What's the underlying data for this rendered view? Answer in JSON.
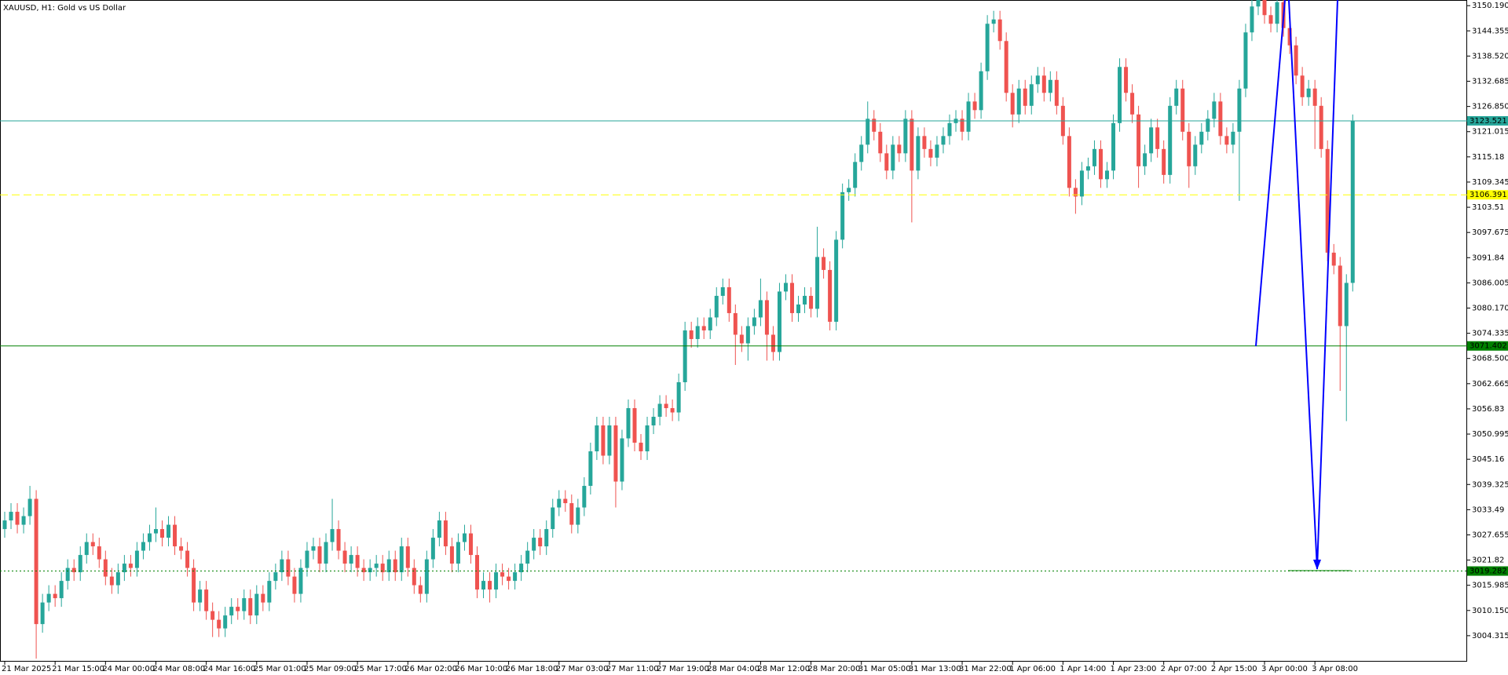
{
  "chart_data": {
    "type": "candlestick",
    "title": "XAUUSD, H1:  Gold vs US Dollar",
    "up_color": "#26a69a",
    "down_color": "#ef5350",
    "categories": [
      "21 Mar 2025",
      null,
      null,
      null,
      null,
      null,
      null,
      null,
      "21 Mar 15:00",
      null,
      null,
      null,
      null,
      null,
      null,
      null,
      "24 Mar 00:00",
      null,
      null,
      null,
      null,
      null,
      null,
      null,
      "24 Mar 08:00",
      null,
      null,
      null,
      null,
      null,
      null,
      null,
      "24 Mar 16:00",
      null,
      null,
      null,
      null,
      null,
      null,
      null,
      "25 Mar 01:00",
      null,
      null,
      null,
      null,
      null,
      null,
      null,
      "25 Mar 09:00",
      null,
      null,
      null,
      null,
      null,
      null,
      null,
      "25 Mar 17:00",
      null,
      null,
      null,
      null,
      null,
      null,
      null,
      "26 Mar 02:00",
      null,
      null,
      null,
      null,
      null,
      null,
      null,
      "26 Mar 10:00",
      null,
      null,
      null,
      null,
      null,
      null,
      null,
      "26 Mar 18:00",
      null,
      null,
      null,
      null,
      null,
      null,
      null,
      "27 Mar 03:00",
      null,
      null,
      null,
      null,
      null,
      null,
      null,
      "27 Mar 11:00",
      null,
      null,
      null,
      null,
      null,
      null,
      null,
      "27 Mar 19:00",
      null,
      null,
      null,
      null,
      null,
      null,
      null,
      "28 Mar 04:00",
      null,
      null,
      null,
      null,
      null,
      null,
      null,
      "28 Mar 12:00",
      null,
      null,
      null,
      null,
      null,
      null,
      null,
      "28 Mar 20:00",
      null,
      null,
      null,
      null,
      null,
      null,
      null,
      "31 Mar 05:00",
      null,
      null,
      null,
      null,
      null,
      null,
      null,
      "31 Mar 13:00",
      null,
      null,
      null,
      null,
      null,
      null,
      null,
      "31 Mar 22:00",
      null,
      null,
      null,
      null,
      null,
      null,
      null,
      "1 Apr 06:00",
      null,
      null,
      null,
      null,
      null,
      null,
      null,
      "1 Apr 14:00",
      null,
      null,
      null,
      null,
      null,
      null,
      null,
      "1 Apr 23:00",
      null,
      null,
      null,
      null,
      null,
      null,
      null,
      "2 Apr 07:00",
      null,
      null,
      null,
      null,
      null,
      null,
      null,
      "2 Apr 15:00",
      null,
      null,
      null,
      null,
      null,
      null,
      null,
      "3 Apr 00:00",
      null,
      null,
      null,
      null,
      null,
      null,
      null,
      "3 Apr 08:00",
      null,
      null,
      null,
      null,
      null,
      null
    ],
    "open": [
      3029,
      3031,
      3033,
      3030,
      3032,
      3036,
      3007,
      3012,
      3014,
      3013,
      3017,
      3020,
      3019,
      3023,
      3026,
      3025,
      3022,
      3018,
      3016,
      3019,
      3021,
      3020,
      3024,
      3026,
      3028,
      3029,
      3027,
      3030,
      3025,
      3024,
      3020,
      3012,
      3015,
      3010,
      3008,
      3006,
      3009,
      3011,
      3010,
      3013,
      3009,
      3014,
      3012,
      3017,
      3019,
      3022,
      3018,
      3014,
      3020,
      3024,
      3025,
      3021,
      3026,
      3029,
      3024,
      3021,
      3023,
      3020,
      3019,
      3020,
      3021,
      3019,
      3022,
      3019,
      3025,
      3020,
      3016,
      3014,
      3022,
      3027,
      3031,
      3025,
      3021,
      3026,
      3028,
      3023,
      3015,
      3017,
      3015,
      3019,
      3018,
      3017,
      3019,
      3021,
      3024,
      3027,
      3025,
      3029,
      3034,
      3036,
      3035,
      3030,
      3034,
      3039,
      3047,
      3053,
      3046,
      3053,
      3040,
      3050,
      3057,
      3049,
      3047,
      3053,
      3055,
      3058,
      3057,
      3056,
      3063,
      3075,
      3073,
      3076,
      3075,
      3078,
      3083,
      3085,
      3079,
      3074,
      3072,
      3076,
      3078,
      3082,
      3074,
      3070,
      3084,
      3086,
      3079,
      3081,
      3083,
      3080,
      3092,
      3089,
      3077,
      3096,
      3107,
      3108,
      3114,
      3118,
      3124,
      3121,
      3116,
      3112,
      3118,
      3116,
      3124,
      3112,
      3120,
      3117,
      3115,
      3118,
      3120,
      3123,
      3124,
      3121,
      3128,
      3126,
      3135,
      3146,
      3147,
      3142,
      3130,
      3125,
      3131,
      3127,
      3132,
      3134,
      3130,
      3133,
      3127,
      3120,
      3108,
      3106,
      3112,
      3113,
      3117,
      3110,
      3112,
      3123,
      3136,
      3130,
      3125,
      3113,
      3116,
      3122,
      3117,
      3111,
      3127,
      3131,
      3121,
      3113,
      3118,
      3121,
      3124,
      3128,
      3120,
      3118,
      3121,
      3131,
      3144,
      3150,
      3153,
      3148,
      3146,
      3151,
      3145,
      3141,
      3134,
      3129,
      3131,
      3127,
      3117,
      3093,
      3090,
      3076,
      3086
    ],
    "high": [
      3033,
      3035,
      3035,
      3034,
      3039,
      3038,
      3014,
      3016,
      3016,
      3019,
      3022,
      3022,
      3025,
      3028,
      3028,
      3027,
      3024,
      3020,
      3021,
      3023,
      3023,
      3026,
      3028,
      3030,
      3034,
      3031,
      3032,
      3032,
      3027,
      3026,
      3022,
      3017,
      3017,
      3012,
      3010,
      3011,
      3013,
      3013,
      3015,
      3015,
      3016,
      3016,
      3019,
      3021,
      3024,
      3024,
      3020,
      3022,
      3026,
      3027,
      3027,
      3028,
      3036,
      3031,
      3026,
      3025,
      3025,
      3022,
      3022,
      3023,
      3023,
      3024,
      3024,
      3027,
      3027,
      3022,
      3018,
      3024,
      3029,
      3033,
      3033,
      3027,
      3028,
      3030,
      3030,
      3025,
      3019,
      3019,
      3021,
      3021,
      3020,
      3021,
      3023,
      3026,
      3029,
      3029,
      3031,
      3036,
      3038,
      3038,
      3037,
      3036,
      3041,
      3049,
      3055,
      3055,
      3055,
      3055,
      3052,
      3059,
      3059,
      3051,
      3055,
      3057,
      3060,
      3060,
      3059,
      3065,
      3077,
      3077,
      3078,
      3078,
      3080,
      3085,
      3087,
      3087,
      3081,
      3076,
      3078,
      3080,
      3087,
      3084,
      3076,
      3086,
      3088,
      3088,
      3083,
      3085,
      3085,
      3099,
      3094,
      3091,
      3098,
      3109,
      3110,
      3116,
      3120,
      3128,
      3126,
      3123,
      3118,
      3120,
      3120,
      3126,
      3126,
      3122,
      3122,
      3119,
      3120,
      3122,
      3125,
      3126,
      3126,
      3130,
      3130,
      3137,
      3148,
      3149,
      3149,
      3144,
      3132,
      3133,
      3133,
      3134,
      3136,
      3136,
      3135,
      3135,
      3129,
      3122,
      3110,
      3114,
      3115,
      3119,
      3119,
      3114,
      3125,
      3138,
      3138,
      3132,
      3127,
      3118,
      3124,
      3124,
      3119,
      3129,
      3133,
      3133,
      3123,
      3120,
      3123,
      3126,
      3130,
      3130,
      3122,
      3123,
      3133,
      3146,
      3152,
      3156,
      3155,
      3150,
      3153,
      3153,
      3147,
      3143,
      3136,
      3133,
      3133,
      3129,
      3119,
      3095,
      3092,
      3088,
      3125
    ],
    "low": [
      3027,
      3029,
      3028,
      3028,
      3030,
      2999,
      3005,
      3010,
      3011,
      3011,
      3015,
      3017,
      3017,
      3021,
      3023,
      3020,
      3016,
      3014,
      3014,
      3017,
      3018,
      3018,
      3022,
      3024,
      3026,
      3025,
      3025,
      3023,
      3022,
      3018,
      3010,
      3010,
      3008,
      3004,
      3004,
      3004,
      3007,
      3008,
      3008,
      3007,
      3007,
      3010,
      3010,
      3015,
      3017,
      3016,
      3012,
      3012,
      3018,
      3022,
      3019,
      3019,
      3024,
      3022,
      3019,
      3019,
      3018,
      3017,
      3017,
      3018,
      3017,
      3017,
      3017,
      3017,
      3018,
      3014,
      3012,
      3012,
      3020,
      3025,
      3023,
      3019,
      3019,
      3024,
      3021,
      3013,
      3013,
      3012,
      3013,
      3016,
      3015,
      3015,
      3017,
      3019,
      3022,
      3023,
      3023,
      3027,
      3032,
      3033,
      3028,
      3028,
      3032,
      3037,
      3045,
      3044,
      3044,
      3034,
      3038,
      3048,
      3047,
      3045,
      3045,
      3051,
      3053,
      3055,
      3054,
      3054,
      3061,
      3071,
      3071,
      3073,
      3073,
      3076,
      3081,
      3077,
      3067,
      3070,
      3068,
      3074,
      3076,
      3068,
      3068,
      3068,
      3082,
      3077,
      3077,
      3079,
      3078,
      3078,
      3087,
      3075,
      3075,
      3094,
      3105,
      3106,
      3112,
      3116,
      3119,
      3114,
      3110,
      3110,
      3114,
      3114,
      3100,
      3110,
      3115,
      3113,
      3113,
      3116,
      3118,
      3121,
      3119,
      3119,
      3124,
      3124,
      3133,
      3144,
      3140,
      3128,
      3122,
      3123,
      3125,
      3125,
      3130,
      3128,
      3128,
      3125,
      3118,
      3106,
      3102,
      3104,
      3110,
      3111,
      3108,
      3108,
      3110,
      3121,
      3128,
      3123,
      3108,
      3111,
      3114,
      3115,
      3109,
      3109,
      3125,
      3119,
      3108,
      3111,
      3116,
      3119,
      3122,
      3118,
      3116,
      3116,
      3105,
      3129,
      3142,
      3148,
      3146,
      3144,
      3144,
      3143,
      3139,
      3132,
      3127,
      3127,
      3117,
      3115,
      3091,
      3088,
      3061,
      3054,
      3084
    ],
    "close": [
      3031,
      3033,
      3030,
      3032,
      3036,
      3007,
      3012,
      3014,
      3013,
      3017,
      3020,
      3019,
      3023,
      3026,
      3025,
      3022,
      3018,
      3016,
      3019,
      3021,
      3020,
      3024,
      3026,
      3028,
      3029,
      3027,
      3030,
      3025,
      3024,
      3020,
      3012,
      3015,
      3010,
      3008,
      3006,
      3009,
      3011,
      3010,
      3013,
      3009,
      3014,
      3012,
      3017,
      3019,
      3022,
      3018,
      3014,
      3020,
      3024,
      3025,
      3021,
      3026,
      3029,
      3024,
      3021,
      3023,
      3020,
      3019,
      3020,
      3021,
      3019,
      3022,
      3019,
      3025,
      3020,
      3016,
      3014,
      3022,
      3027,
      3031,
      3025,
      3021,
      3026,
      3028,
      3023,
      3015,
      3017,
      3015,
      3019,
      3018,
      3017,
      3019,
      3021,
      3024,
      3027,
      3025,
      3029,
      3034,
      3036,
      3035,
      3030,
      3034,
      3039,
      3047,
      3053,
      3046,
      3053,
      3040,
      3050,
      3057,
      3049,
      3047,
      3053,
      3055,
      3058,
      3057,
      3056,
      3063,
      3075,
      3073,
      3076,
      3075,
      3078,
      3083,
      3085,
      3079,
      3074,
      3072,
      3076,
      3078,
      3082,
      3074,
      3070,
      3084,
      3086,
      3079,
      3081,
      3083,
      3080,
      3092,
      3089,
      3077,
      3096,
      3107,
      3108,
      3114,
      3118,
      3124,
      3121,
      3116,
      3112,
      3118,
      3116,
      3124,
      3112,
      3120,
      3117,
      3115,
      3118,
      3120,
      3123,
      3124,
      3121,
      3128,
      3126,
      3135,
      3146,
      3147,
      3142,
      3130,
      3125,
      3131,
      3127,
      3132,
      3134,
      3130,
      3133,
      3127,
      3120,
      3108,
      3106,
      3112,
      3113,
      3117,
      3110,
      3112,
      3123,
      3136,
      3130,
      3125,
      3113,
      3116,
      3122,
      3117,
      3111,
      3127,
      3131,
      3121,
      3113,
      3118,
      3121,
      3124,
      3128,
      3120,
      3118,
      3121,
      3131,
      3144,
      3150,
      3153,
      3148,
      3146,
      3151,
      3145,
      3141,
      3134,
      3129,
      3131,
      3127,
      3117,
      3093,
      3090,
      3076,
      3086,
      3123.5
    ],
    "ylim": [
      2998.3,
      3151.5
    ],
    "yticks": [
      {
        "value": 3150.19,
        "label": "3150.190"
      },
      3144.355,
      {
        "value": 3138.52,
        "label": "3138.520"
      },
      3132.685,
      {
        "value": 3126.85,
        "label": "3126.850"
      },
      3121.015,
      3115.18,
      3109.345,
      3103.51,
      3097.675,
      3091.84,
      3086.005,
      {
        "value": 3080.17,
        "label": "3080.170"
      },
      3074.335,
      {
        "value": 3068.5,
        "label": "3068.500"
      },
      3062.665,
      3056.83,
      3050.995,
      3045.16,
      3039.325,
      3033.49,
      3027.655,
      3021.82,
      3015.985,
      {
        "value": 3010.15,
        "label": "3010.150"
      },
      3004.315
    ],
    "levels": [
      {
        "value": 3123.521,
        "color": "#26a69a",
        "style": "solid"
      },
      {
        "value": 3106.391,
        "color": "#ffff00",
        "style": "dashed"
      },
      {
        "value": 3071.402,
        "color": "#008000",
        "style": "solid"
      },
      {
        "value": 3019.282,
        "color": "#008000",
        "style": "dotted"
      }
    ]
  }
}
